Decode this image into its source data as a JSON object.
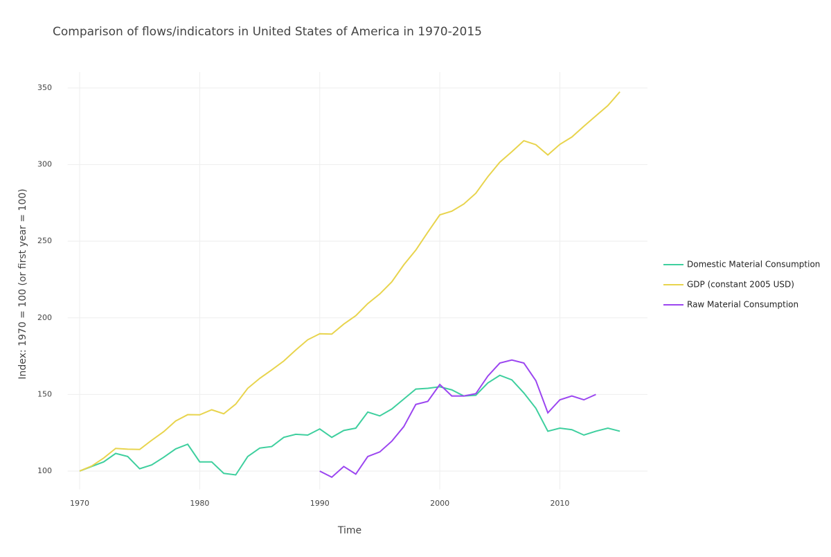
{
  "chart_data": {
    "type": "line",
    "title": "Comparison of flows/indicators in United States of America in 1970-2015",
    "x_label": "Time",
    "y_label": "Index: 1970 = 100 (or first year = 100)",
    "x": [
      1970,
      1971,
      1972,
      1973,
      1974,
      1975,
      1976,
      1977,
      1978,
      1979,
      1980,
      1981,
      1982,
      1983,
      1984,
      1985,
      1986,
      1987,
      1988,
      1989,
      1990,
      1991,
      1992,
      1993,
      1994,
      1995,
      1996,
      1997,
      1998,
      1999,
      2000,
      2001,
      2002,
      2003,
      2004,
      2005,
      2006,
      2007,
      2008,
      2009,
      2010,
      2011,
      2012,
      2013,
      2014,
      2015
    ],
    "series": [
      {
        "name": "Domestic Material Consumption",
        "color": "#3ecf9e",
        "values": [
          100,
          103,
          106,
          111.5,
          109.5,
          101.5,
          104,
          109,
          114.5,
          117.5,
          106,
          106,
          98.5,
          97.5,
          109.5,
          115,
          116,
          122,
          124,
          123.5,
          127.5,
          122,
          126.5,
          128,
          138.5,
          136,
          140.5,
          147,
          153.5,
          154,
          155,
          153,
          149,
          149.5,
          157.5,
          162.5,
          159.5,
          151,
          141,
          126,
          128,
          127,
          123.5,
          126,
          128,
          126
        ]
      },
      {
        "name": "GDP (constant 2005 USD)",
        "color": "#e8d44d",
        "values": [
          100,
          103.3,
          108.5,
          114.8,
          114.3,
          114.1,
          120.1,
          125.7,
          132.7,
          136.8,
          136.7,
          140,
          137.4,
          143.7,
          154,
          160.5,
          166,
          171.8,
          179,
          185.7,
          189.6,
          189.4,
          195.9,
          201.4,
          209.3,
          215.6,
          223.5,
          234.6,
          244.2,
          255.9,
          267.2,
          269.6,
          274.3,
          281.3,
          292.1,
          301.6,
          308.4,
          315.6,
          313,
          306.3,
          313.2,
          318,
          325,
          331.8,
          338.5,
          347.5
        ]
      },
      {
        "name": "Raw Material Consumption",
        "color": "#9b45f0",
        "values": [
          null,
          null,
          null,
          null,
          null,
          null,
          null,
          null,
          null,
          null,
          null,
          null,
          null,
          null,
          null,
          null,
          null,
          null,
          null,
          null,
          100,
          96,
          103,
          98,
          109.5,
          112.5,
          119.5,
          129,
          143.5,
          145.5,
          156.5,
          149,
          149,
          150.5,
          162,
          170.5,
          172.5,
          170.5,
          159,
          138,
          146.5,
          149,
          146.5,
          150,
          null,
          null
        ]
      }
    ],
    "xlim": [
      1969,
      2017.3
    ],
    "xticks": [
      1970,
      1980,
      1990,
      2000,
      2010
    ],
    "ylim": [
      88,
      360.4
    ],
    "yticks": [
      100,
      150,
      200,
      250,
      300,
      350
    ],
    "grid": true,
    "legend": "right"
  }
}
